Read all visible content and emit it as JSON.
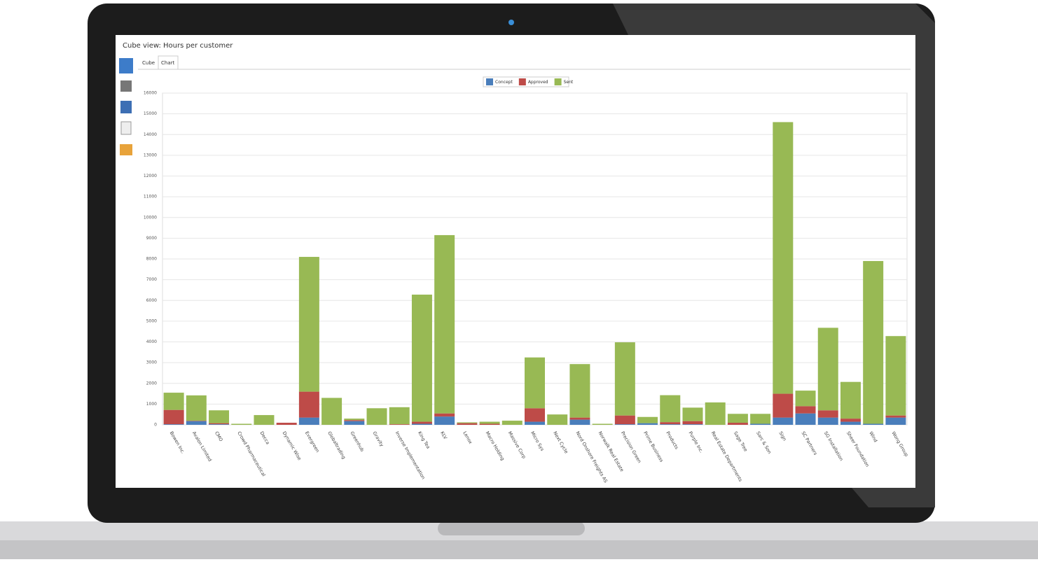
{
  "window": {
    "title": "Cube view: Hours per customer",
    "tabs": [
      "Cube",
      "Chart"
    ]
  },
  "chart_data": {
    "type": "bar",
    "stacked": true,
    "grid": true,
    "legend": "top",
    "categories": [
      "Bowen Inc.",
      "Avalon Limited",
      "CMO",
      "Crowd Pharmaceutical",
      "Decca",
      "Dynamic Wise",
      "Evergreen",
      "Globaltrading",
      "Greenhub",
      "Gravity",
      "Inverse Implementation",
      "King Tea",
      "KLV",
      "Lenox",
      "Macro Holding",
      "Massive Corp",
      "Micro Sys",
      "Next Cycle",
      "Nord Onshore Freights AS",
      "Norwalk Real Estate",
      "Precision Green",
      "Prime Business",
      "Products",
      "Purple Inc.",
      "Real Estate Departments",
      "Sage Tree",
      "Sarc & Son",
      "Sign",
      "SC Partners",
      "SG Installation",
      "Sheer Foundation",
      "Wind",
      "Wong Group"
    ],
    "series": [
      {
        "name": "Concept",
        "color": "#4a7ebb",
        "values": [
          30,
          180,
          30,
          0,
          0,
          0,
          350,
          0,
          180,
          0,
          0,
          50,
          400,
          0,
          0,
          0,
          150,
          0,
          250,
          0,
          30,
          80,
          30,
          30,
          0,
          0,
          50,
          350,
          550,
          350,
          150,
          50,
          350
        ]
      },
      {
        "name": "Approved",
        "color": "#be4b48",
        "values": [
          690,
          20,
          50,
          0,
          0,
          100,
          1250,
          0,
          50,
          0,
          30,
          100,
          150,
          80,
          50,
          0,
          650,
          0,
          100,
          0,
          420,
          0,
          100,
          150,
          0,
          100,
          0,
          1150,
          350,
          350,
          150,
          0,
          100
        ]
      },
      {
        "name": "Sent",
        "color": "#98b954",
        "values": [
          830,
          1220,
          620,
          50,
          470,
          0,
          6500,
          1300,
          70,
          800,
          820,
          6130,
          8600,
          40,
          100,
          200,
          2450,
          500,
          2580,
          50,
          3530,
          300,
          1300,
          650,
          1080,
          430,
          480,
          13100,
          750,
          3980,
          1770,
          7850,
          3830
        ]
      }
    ],
    "ylim": [
      0,
      16000
    ],
    "yticks": [
      0,
      1000,
      2000,
      3000,
      4000,
      5000,
      6000,
      7000,
      8000,
      9000,
      10000,
      11000,
      12000,
      13000,
      14000,
      15000,
      16000
    ]
  }
}
